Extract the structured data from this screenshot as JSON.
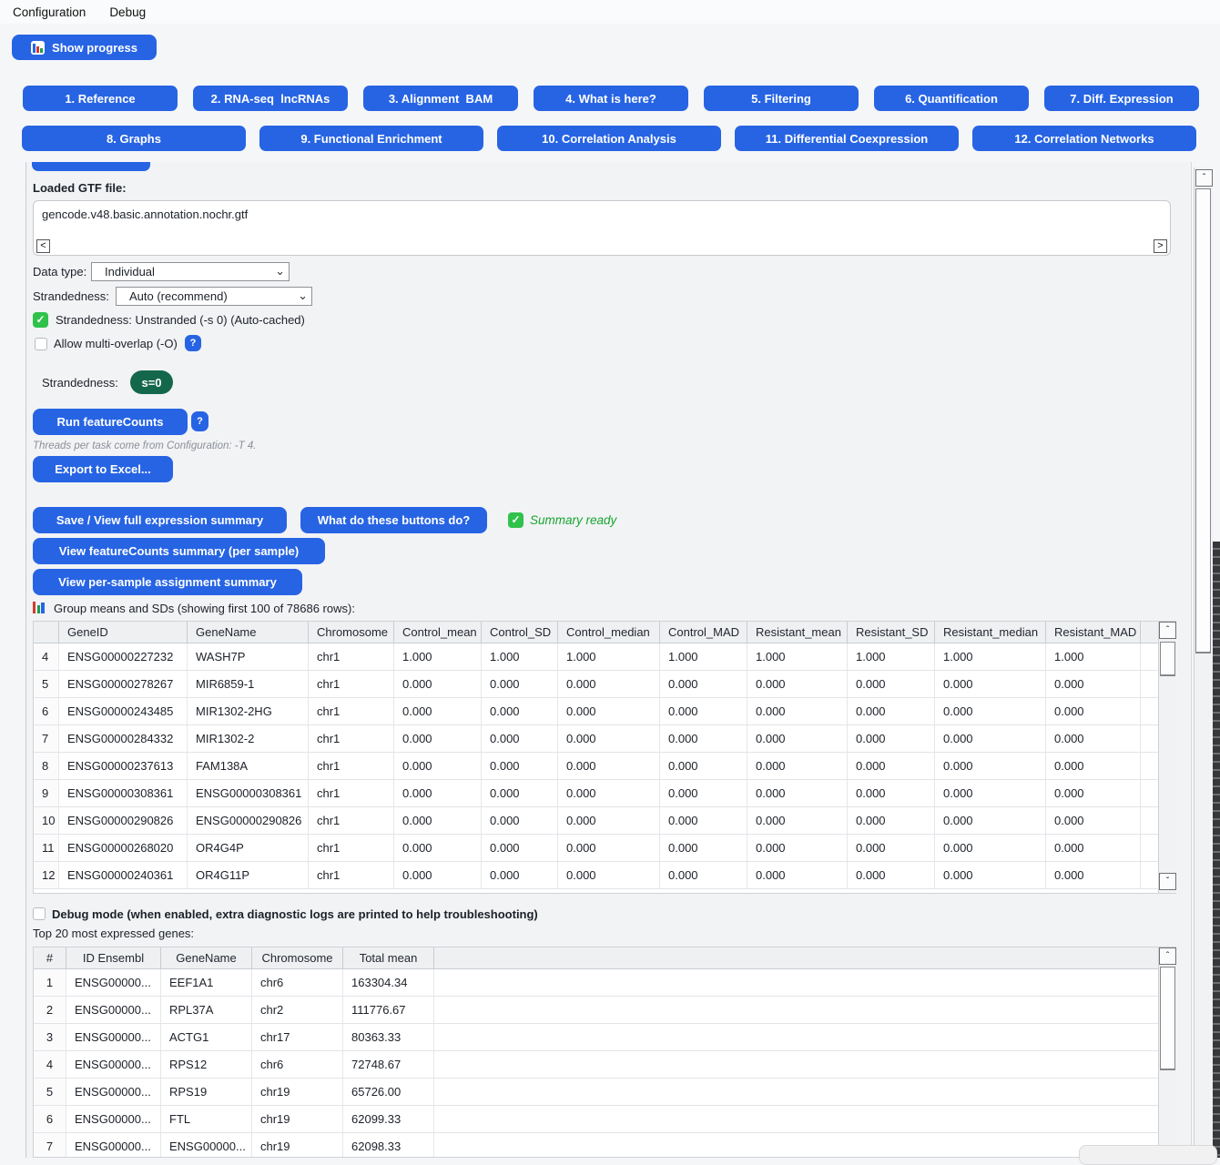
{
  "menu": {
    "items": [
      "Configuration",
      "Debug"
    ]
  },
  "toolbar": {
    "show_progress": "Show progress"
  },
  "tabs": {
    "row1": [
      "1. Reference",
      "2. RNA-seq  lncRNAs",
      "3. Alignment  BAM",
      "4. What is here?",
      "5. Filtering",
      "6. Quantification",
      "7. Diff. Expression"
    ],
    "row2": [
      "8. Graphs",
      "9. Functional Enrichment",
      "10. Correlation Analysis",
      "11. Differential Coexpression",
      "12. Correlation Networks"
    ]
  },
  "panel": {
    "gtf_label": "Loaded GTF file:",
    "gtf_value": "gencode.v48.basic.annotation.nochr.gtf",
    "data_type_label": "Data type:",
    "data_type_value": "Individual",
    "strandedness_label": "Strandedness:",
    "strandedness_value": "Auto (recommend)",
    "strand_check_label": "Strandedness: Unstranded (-s 0) (Auto-cached)",
    "multi_overlap_label": "Allow multi-overlap (-O)",
    "help_q": "?",
    "strand_badge_label": "Strandedness:",
    "strand_badge_value": "s=0",
    "run_button": "Run featureCounts",
    "threads_note": "Threads per task come from Configuration: -T 4.",
    "export_button": "Export to Excel...",
    "save_button": "Save / View full expression summary",
    "what_button": "What do these buttons do?",
    "summary_ready": "Summary ready",
    "view_fc_button": "View featureCounts summary (per sample)",
    "view_ps_button": "View per-sample assignment summary",
    "group_caption": "Group means and SDs (showing first 100 of 78686 rows):",
    "debug_label": "Debug mode (when enabled, extra diagnostic logs are printed to help troubleshooting)",
    "top20_label": "Top 20 most expressed genes:"
  },
  "group_table": {
    "columns": [
      "",
      "GeneID",
      "GeneName",
      "Chromosome",
      "Control_mean",
      "Control_SD",
      "Control_median",
      "Control_MAD",
      "Resistant_mean",
      "Resistant_SD",
      "Resistant_median",
      "Resistant_MAD"
    ],
    "rows": [
      [
        "4",
        "ENSG00000227232",
        "WASH7P",
        "chr1",
        "1.000",
        "1.000",
        "1.000",
        "1.000",
        "1.000",
        "1.000",
        "1.000",
        "1.000"
      ],
      [
        "5",
        "ENSG00000278267",
        "MIR6859-1",
        "chr1",
        "0.000",
        "0.000",
        "0.000",
        "0.000",
        "0.000",
        "0.000",
        "0.000",
        "0.000"
      ],
      [
        "6",
        "ENSG00000243485",
        "MIR1302-2HG",
        "chr1",
        "0.000",
        "0.000",
        "0.000",
        "0.000",
        "0.000",
        "0.000",
        "0.000",
        "0.000"
      ],
      [
        "7",
        "ENSG00000284332",
        "MIR1302-2",
        "chr1",
        "0.000",
        "0.000",
        "0.000",
        "0.000",
        "0.000",
        "0.000",
        "0.000",
        "0.000"
      ],
      [
        "8",
        "ENSG00000237613",
        "FAM138A",
        "chr1",
        "0.000",
        "0.000",
        "0.000",
        "0.000",
        "0.000",
        "0.000",
        "0.000",
        "0.000"
      ],
      [
        "9",
        "ENSG00000308361",
        "ENSG00000308361",
        "chr1",
        "0.000",
        "0.000",
        "0.000",
        "0.000",
        "0.000",
        "0.000",
        "0.000",
        "0.000"
      ],
      [
        "10",
        "ENSG00000290826",
        "ENSG00000290826",
        "chr1",
        "0.000",
        "0.000",
        "0.000",
        "0.000",
        "0.000",
        "0.000",
        "0.000",
        "0.000"
      ],
      [
        "11",
        "ENSG00000268020",
        "OR4G4P",
        "chr1",
        "0.000",
        "0.000",
        "0.000",
        "0.000",
        "0.000",
        "0.000",
        "0.000",
        "0.000"
      ],
      [
        "12",
        "ENSG00000240361",
        "OR4G11P",
        "chr1",
        "0.000",
        "0.000",
        "0.000",
        "0.000",
        "0.000",
        "0.000",
        "0.000",
        "0.000"
      ]
    ]
  },
  "top_table": {
    "columns": [
      "#",
      "ID Ensembl",
      "GeneName",
      "Chromosome",
      "Total mean"
    ],
    "rows": [
      [
        "1",
        "ENSG00000...",
        "EEF1A1",
        "chr6",
        "163304.34"
      ],
      [
        "2",
        "ENSG00000...",
        "RPL37A",
        "chr2",
        "111776.67"
      ],
      [
        "3",
        "ENSG00000...",
        "ACTG1",
        "chr17",
        "80363.33"
      ],
      [
        "4",
        "ENSG00000...",
        "RPS12",
        "chr6",
        "72748.67"
      ],
      [
        "5",
        "ENSG00000...",
        "RPS19",
        "chr19",
        "65726.00"
      ],
      [
        "6",
        "ENSG00000...",
        "FTL",
        "chr19",
        "62099.33"
      ],
      [
        "7",
        "ENSG00000...",
        "ENSG00000...",
        "chr19",
        "62098.33"
      ]
    ]
  },
  "colors": {
    "accent_blue": "#2764e4",
    "check_green": "#2fc24c",
    "badge_green": "#15674b",
    "summary_green": "#16a52f"
  }
}
